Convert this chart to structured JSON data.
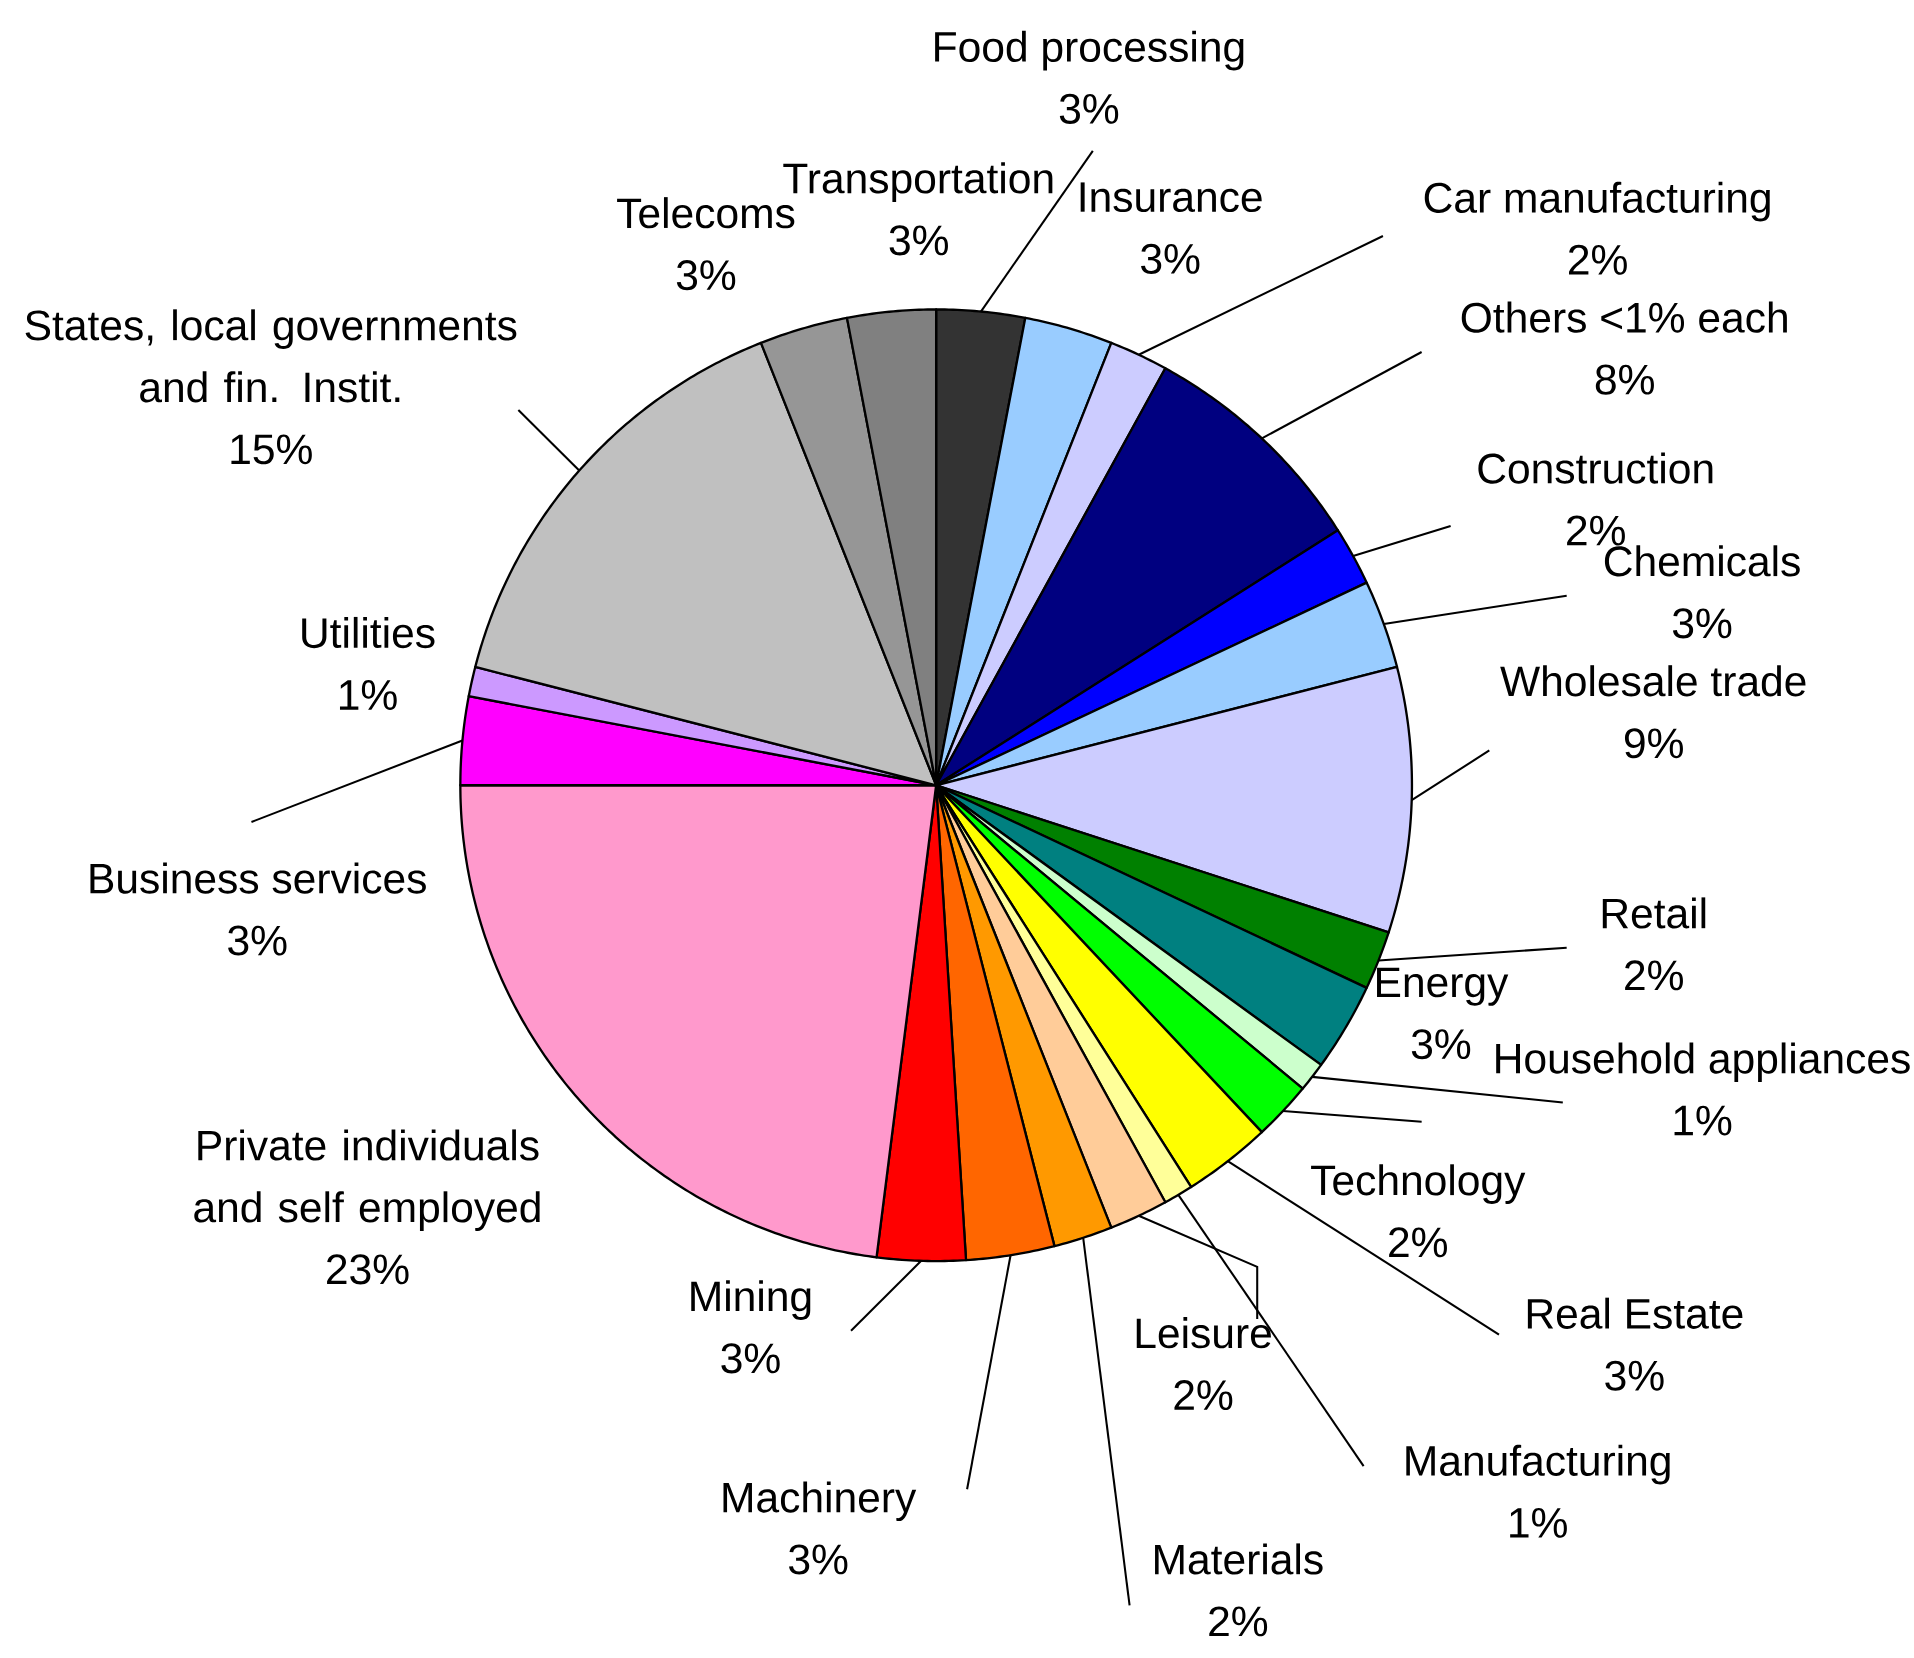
{
  "chart_data": {
    "type": "pie",
    "categories": [
      "Food processing",
      "Insurance",
      "Car manufacturing",
      "Others <1% each",
      "Construction",
      "Chemicals",
      "Wholesale trade",
      "Retail",
      "Energy",
      "Household appliances",
      "Technology",
      "Real Estate",
      "Manufacturing",
      "Leisure",
      "Materials",
      "Machinery",
      "Mining",
      "Private individuals and self employed",
      "Business services",
      "Utilities",
      "States, local governments and fin. Instit.",
      "Telecoms",
      "Transportation"
    ],
    "values": [
      3,
      3,
      2,
      8,
      2,
      3,
      9,
      2,
      3,
      1,
      2,
      3,
      1,
      2,
      2,
      3,
      3,
      23,
      3,
      1,
      15,
      3,
      3
    ],
    "value_labels": [
      "3%",
      "3%",
      "2%",
      "8%",
      "2%",
      "3%",
      "9%",
      "2%",
      "3%",
      "1%",
      "2%",
      "3%",
      "1%",
      "2%",
      "2%",
      "3%",
      "3%",
      "23%",
      "3%",
      "1%",
      "15%",
      "3%",
      "3%"
    ],
    "colors": [
      "#333333",
      "#99ccff",
      "#ccccff",
      "#000080",
      "#0000ff",
      "#99ccff",
      "#ccccff",
      "#008000",
      "#008080",
      "#ccffcc",
      "#00ff00",
      "#ffff00",
      "#ffff99",
      "#ffcc99",
      "#ff9900",
      "#ff6600",
      "#ff0000",
      "#ff99cc",
      "#ff00ff",
      "#cc99ff",
      "#c0c0c0",
      "#969696",
      "#808080"
    ]
  }
}
